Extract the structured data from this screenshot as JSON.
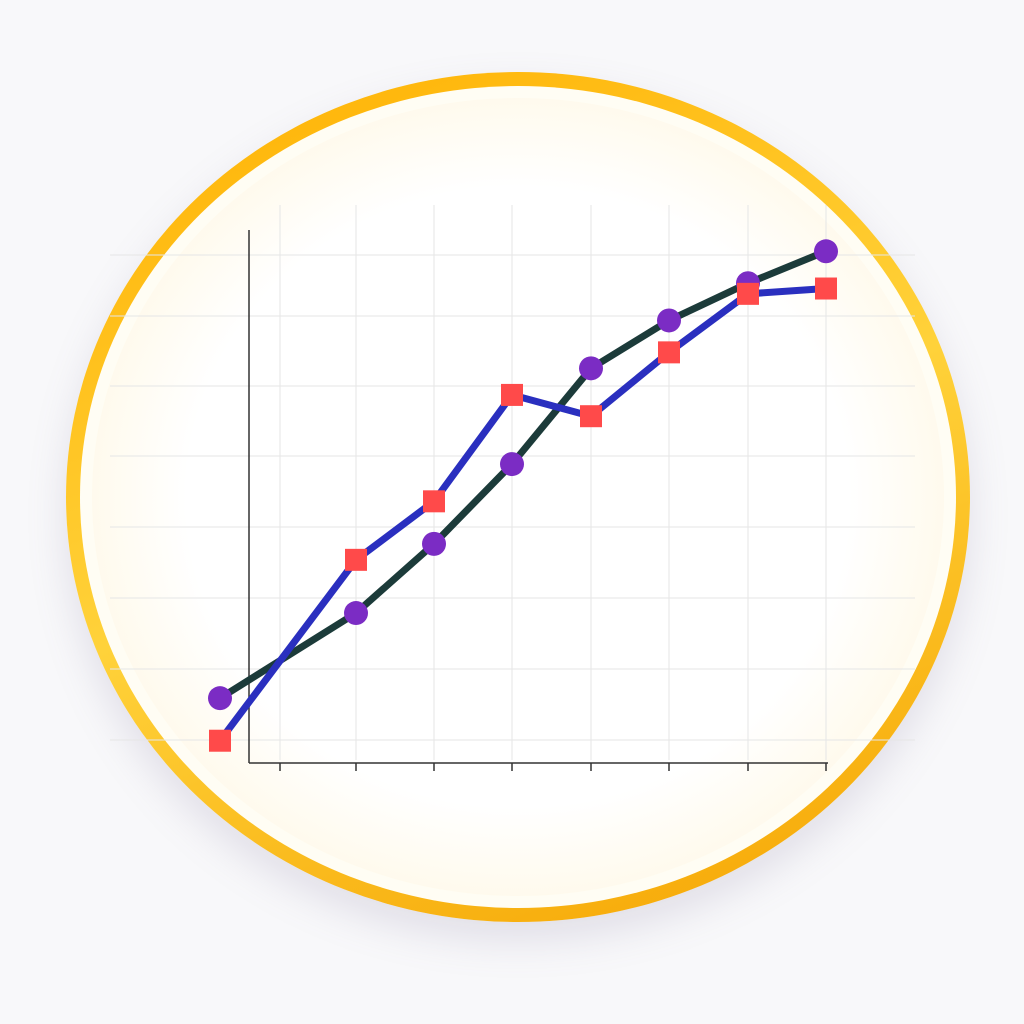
{
  "colors": {
    "ring": "#ffc21a",
    "face": "#fffdf6",
    "grid": "#e6e6e6",
    "axis": "#333333"
  },
  "chart_data": {
    "type": "line",
    "title": "",
    "xlabel": "",
    "ylabel": "",
    "x": [
      0,
      1,
      2,
      3,
      4,
      5,
      6,
      7
    ],
    "ylim": [
      0,
      100
    ],
    "grid": true,
    "legend": "none",
    "series": [
      {
        "color": "#1c3b3a",
        "marker": "circle",
        "marker_color": "#7b2cc4",
        "values": [
          12,
          28,
          41,
          56,
          74,
          83,
          90,
          96
        ]
      },
      {
        "color": "#2a2fbf",
        "marker": "square",
        "marker_color": "#ff4a4a",
        "values": [
          4,
          38,
          49,
          69,
          65,
          77,
          88,
          89
        ]
      }
    ]
  }
}
